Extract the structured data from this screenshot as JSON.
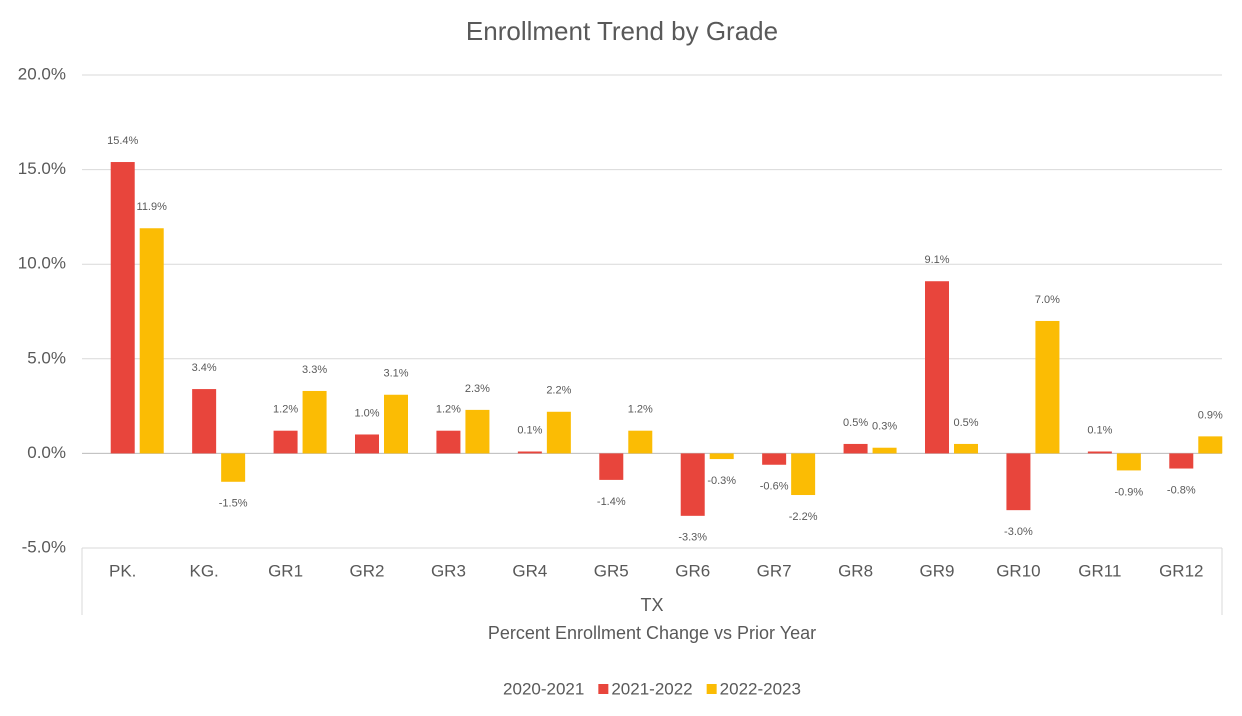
{
  "chart_data": {
    "type": "bar",
    "title": "Enrollment Trend by Grade",
    "categories": [
      "PK.",
      "KG.",
      "GR1",
      "GR2",
      "GR3",
      "GR4",
      "GR5",
      "GR6",
      "GR7",
      "GR8",
      "GR9",
      "GR10",
      "GR11",
      "GR12"
    ],
    "x_group": "TX",
    "xlabel": "Percent Enrollment Change vs Prior Year",
    "series": [
      {
        "name": "2020-2021",
        "values": [
          null,
          null,
          null,
          null,
          null,
          null,
          null,
          null,
          null,
          null,
          null,
          null,
          null,
          null
        ]
      },
      {
        "name": "2021-2022",
        "color": "#e8453c",
        "values": [
          15.4,
          3.4,
          1.2,
          1.0,
          1.2,
          0.1,
          -1.4,
          -3.3,
          -0.6,
          0.5,
          9.1,
          -3.0,
          0.1,
          -0.8
        ],
        "value_labels": [
          "15.4%",
          "3.4%",
          "1.2%",
          "1.0%",
          "1.2%",
          "0.1%",
          "-1.4%",
          "-3.3%",
          "-0.6%",
          "0.5%",
          "9.1%",
          "-3.0%",
          "0.1%",
          "-0.8%"
        ]
      },
      {
        "name": "2022-2023",
        "color": "#fbbc04",
        "values": [
          11.9,
          -1.5,
          3.3,
          3.1,
          2.3,
          2.2,
          1.2,
          -0.3,
          -2.2,
          0.3,
          0.5,
          7.0,
          -0.9,
          0.9
        ],
        "value_labels": [
          "11.9%",
          "-1.5%",
          "3.3%",
          "3.1%",
          "2.3%",
          "2.2%",
          "1.2%",
          "-0.3%",
          "-2.2%",
          "0.3%",
          "0.5%",
          "7.0%",
          "-0.9%",
          "0.9%"
        ]
      }
    ],
    "ylim": [
      -5,
      20
    ],
    "yticks": [
      {
        "value": -5,
        "label": "-5.0%"
      },
      {
        "value": 0,
        "label": "0.0%"
      },
      {
        "value": 5,
        "label": "5.0%"
      },
      {
        "value": 10,
        "label": "10.0%"
      },
      {
        "value": 15,
        "label": "15.0%"
      },
      {
        "value": 20,
        "label": "20.0%"
      }
    ],
    "grid": true,
    "legend": "bottom"
  }
}
